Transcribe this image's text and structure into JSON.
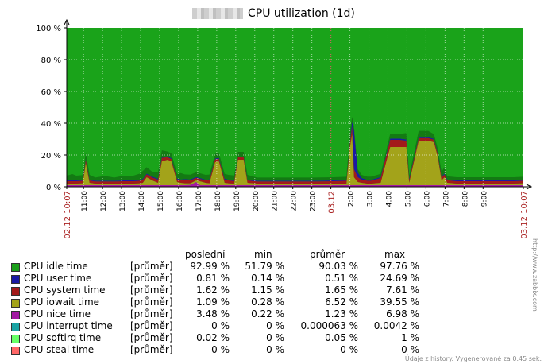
{
  "title": "CPU utilization (1d)",
  "colors": {
    "background": "#ffffff",
    "plot_bg": "#1aa31a",
    "idle": "#1a9f1a",
    "user": "#1a1aa3",
    "system": "#a31a1a",
    "iowait": "#a3a31a",
    "nice": "#a31aa3",
    "interrupt": "#1aa3a3",
    "softirq": "#66ff66",
    "steal": "#ff6666",
    "grid": "#ffffff",
    "tick_red": "#aa2222"
  },
  "chart_data": {
    "type": "area",
    "stacked": true,
    "title": "CPU utilization (1d)",
    "ylim": [
      0,
      100
    ],
    "y_ticks": [
      "0 %",
      "20 %",
      "40 %",
      "60 %",
      "80 %",
      "100 %"
    ],
    "x_start": "02.12 10:07",
    "x_end": "03.12 10:07",
    "x_ticks": [
      "02.12 10:07",
      "11:00",
      "12:00",
      "13:00",
      "14:00",
      "15:00",
      "16:00",
      "17:00",
      "18:00",
      "19:00",
      "20:00",
      "21:00",
      "22:00",
      "23:00",
      "03.12",
      "2:00",
      "3:00",
      "4:00",
      "5:00",
      "6:00",
      "7:00",
      "8:00",
      "9:00",
      "03.12 10:07"
    ],
    "x_tick_hours": [
      0,
      0.883,
      1.883,
      2.883,
      3.883,
      4.883,
      5.883,
      6.883,
      7.883,
      8.883,
      9.883,
      10.883,
      11.883,
      12.883,
      13.883,
      14.883,
      15.883,
      16.883,
      17.883,
      18.883,
      19.883,
      20.883,
      21.883,
      24
    ],
    "red_ticks": [
      "02.12 10:07",
      "03.12",
      "03.12 10:07"
    ],
    "series": [
      {
        "name": "CPU idle time",
        "color": "#1a9f1a"
      },
      {
        "name": "CPU user time",
        "color": "#1a1aa3"
      },
      {
        "name": "CPU system time",
        "color": "#a31a1a"
      },
      {
        "name": "CPU iowait time",
        "color": "#a3a31a"
      },
      {
        "name": "CPU nice time",
        "color": "#a31aa3"
      },
      {
        "name": "CPU interrupt time",
        "color": "#1aa3a3"
      },
      {
        "name": "CPU softirq time",
        "color": "#66ff66"
      },
      {
        "name": "CPU steal time",
        "color": "#ff6666"
      }
    ],
    "hours": [
      0,
      0.3,
      0.5,
      0.85,
      1.0,
      1.2,
      1.5,
      2.0,
      2.5,
      3.0,
      3.5,
      3.85,
      4.0,
      4.2,
      4.5,
      4.8,
      5.0,
      5.3,
      5.5,
      5.8,
      6.0,
      6.2,
      6.5,
      6.8,
      7.0,
      7.3,
      7.5,
      7.8,
      8.0,
      8.3,
      8.5,
      8.8,
      9.0,
      9.3,
      9.5,
      10.0,
      11.0,
      12.0,
      13.0,
      14.0,
      14.7,
      14.9,
      15.0,
      15.1,
      15.3,
      15.5,
      15.8,
      16.0,
      16.5,
      17.0,
      17.5,
      17.85,
      18.0,
      18.5,
      19.0,
      19.3,
      19.5,
      19.7,
      19.85,
      20.0,
      20.5,
      21.0,
      21.5,
      22.0,
      22.5,
      23.0,
      23.5,
      24.0
    ],
    "user": [
      0.5,
      0.5,
      0.5,
      0.6,
      0.5,
      0.5,
      0.4,
      0.4,
      0.4,
      0.5,
      0.5,
      0.5,
      0.5,
      0.5,
      0.6,
      0.6,
      0.8,
      0.6,
      0.5,
      0.5,
      0.5,
      0.6,
      0.6,
      0.5,
      0.5,
      0.5,
      0.5,
      0.5,
      0.6,
      0.6,
      0.5,
      0.5,
      0.5,
      0.5,
      0.5,
      0.4,
      0.4,
      0.4,
      0.4,
      0.5,
      0.5,
      1.0,
      3.0,
      24.7,
      3.0,
      1.0,
      0.6,
      0.6,
      0.6,
      0.8,
      0.8,
      0.8,
      0.6,
      0.6,
      0.6,
      0.5,
      0.6,
      0.6,
      0.6,
      0.5,
      0.5,
      0.5,
      0.5,
      0.5,
      0.5,
      0.5,
      0.5,
      0.5
    ],
    "system": [
      1.5,
      1.5,
      1.5,
      1.6,
      2.0,
      1.5,
      1.4,
      1.4,
      1.4,
      1.5,
      1.5,
      1.6,
      2.0,
      1.8,
      1.8,
      2.0,
      2.2,
      1.6,
      1.5,
      1.6,
      1.6,
      2.0,
      1.8,
      1.6,
      1.5,
      1.5,
      2.0,
      1.8,
      1.6,
      2.0,
      1.8,
      1.6,
      1.5,
      1.5,
      1.5,
      1.4,
      1.4,
      1.4,
      1.4,
      1.5,
      1.8,
      3.0,
      5.0,
      5.0,
      3.0,
      2.0,
      1.8,
      1.8,
      3.0,
      4.5,
      4.5,
      4.0,
      2.0,
      1.6,
      1.6,
      1.6,
      1.6,
      1.8,
      1.8,
      1.6,
      1.5,
      1.5,
      1.5,
      1.5,
      1.5,
      1.5,
      1.5,
      1.6
    ],
    "iowait": [
      1.0,
      1.0,
      1.0,
      1.2,
      14.0,
      1.5,
      1.0,
      1.0,
      1.0,
      1.0,
      1.0,
      1.2,
      1.5,
      5.0,
      3.0,
      1.5,
      15.0,
      16.0,
      15.0,
      2.0,
      1.5,
      1.2,
      1.0,
      1.0,
      2.5,
      1.5,
      1.2,
      14.5,
      15.0,
      1.5,
      1.2,
      1.0,
      16.0,
      16.0,
      1.5,
      1.0,
      1.0,
      1.0,
      1.0,
      1.0,
      1.0,
      25.0,
      32.0,
      5.0,
      2.0,
      1.5,
      1.0,
      1.0,
      1.5,
      24.0,
      24.0,
      24.0,
      1.5,
      28.0,
      28.0,
      27.0,
      18.0,
      3.0,
      5.0,
      1.5,
      1.0,
      1.0,
      1.0,
      1.0,
      1.0,
      1.0,
      1.0,
      1.2
    ],
    "nice": [
      1.0,
      1.0,
      1.0,
      1.0,
      1.0,
      1.0,
      1.0,
      1.0,
      1.0,
      1.0,
      1.0,
      1.0,
      1.0,
      1.0,
      1.0,
      1.0,
      1.0,
      1.0,
      1.0,
      1.0,
      1.0,
      1.0,
      1.2,
      3.0,
      1.0,
      1.0,
      1.0,
      1.0,
      1.0,
      1.0,
      1.0,
      1.0,
      1.0,
      1.0,
      1.0,
      1.0,
      1.0,
      1.0,
      1.0,
      1.0,
      1.0,
      1.0,
      1.0,
      1.0,
      1.0,
      1.0,
      1.0,
      1.0,
      1.0,
      1.0,
      1.0,
      1.0,
      1.0,
      1.0,
      1.0,
      1.0,
      1.0,
      1.0,
      1.0,
      1.0,
      1.0,
      1.0,
      1.0,
      1.0,
      1.0,
      1.0,
      1.0,
      1.0
    ],
    "other_band": [
      3,
      4,
      3,
      3,
      4,
      3,
      2,
      3,
      2,
      3,
      3,
      4,
      5,
      4,
      3,
      4,
      4,
      3,
      3,
      3,
      4,
      3,
      3,
      3,
      3,
      3,
      3,
      3,
      3,
      3,
      3,
      3,
      3,
      3,
      3,
      2,
      2,
      2,
      2,
      2,
      2,
      6,
      3,
      2,
      2,
      2,
      2,
      2,
      2,
      3,
      3,
      4,
      2,
      4,
      4,
      3,
      3,
      3,
      4,
      2,
      2,
      2,
      2,
      2,
      2,
      2,
      2,
      2
    ],
    "legend_table": {
      "headers": [
        "poslední",
        "min",
        "průměr",
        "max"
      ],
      "rows": [
        {
          "name": "CPU idle time",
          "func": "[průměr]",
          "last": "92.99 %",
          "min": "51.79 %",
          "avg": "90.03 %",
          "max": "97.76 %"
        },
        {
          "name": "CPU user time",
          "func": "[průměr]",
          "last": "0.81 %",
          "min": "0.14 %",
          "avg": "0.51 %",
          "max": "24.69 %"
        },
        {
          "name": "CPU system time",
          "func": "[průměr]",
          "last": "1.62 %",
          "min": "1.15 %",
          "avg": "1.65 %",
          "max": "7.61 %"
        },
        {
          "name": "CPU iowait time",
          "func": "[průměr]",
          "last": "1.09 %",
          "min": "0.28 %",
          "avg": "6.52 %",
          "max": "39.55 %"
        },
        {
          "name": "CPU nice time",
          "func": "[průměr]",
          "last": "3.48 %",
          "min": "0.22 %",
          "avg": "1.23 %",
          "max": "6.98 %"
        },
        {
          "name": "CPU interrupt time",
          "func": "[průměr]",
          "last": "0 %",
          "min": "0 %",
          "avg": "0.000063 %",
          "max": "0.0042 %"
        },
        {
          "name": "CPU softirq time",
          "func": "[průměr]",
          "last": "0.02 %",
          "min": "0 %",
          "avg": "0.05 %",
          "max": "1 %"
        },
        {
          "name": "CPU steal time",
          "func": "[průměr]",
          "last": "0 %",
          "min": "0 %",
          "avg": "0 %",
          "max": "0 %"
        }
      ]
    }
  },
  "footer": "Údaje z history. Vygenerované za 0.45 sek.",
  "watermark": "http://www.zabbix.com"
}
